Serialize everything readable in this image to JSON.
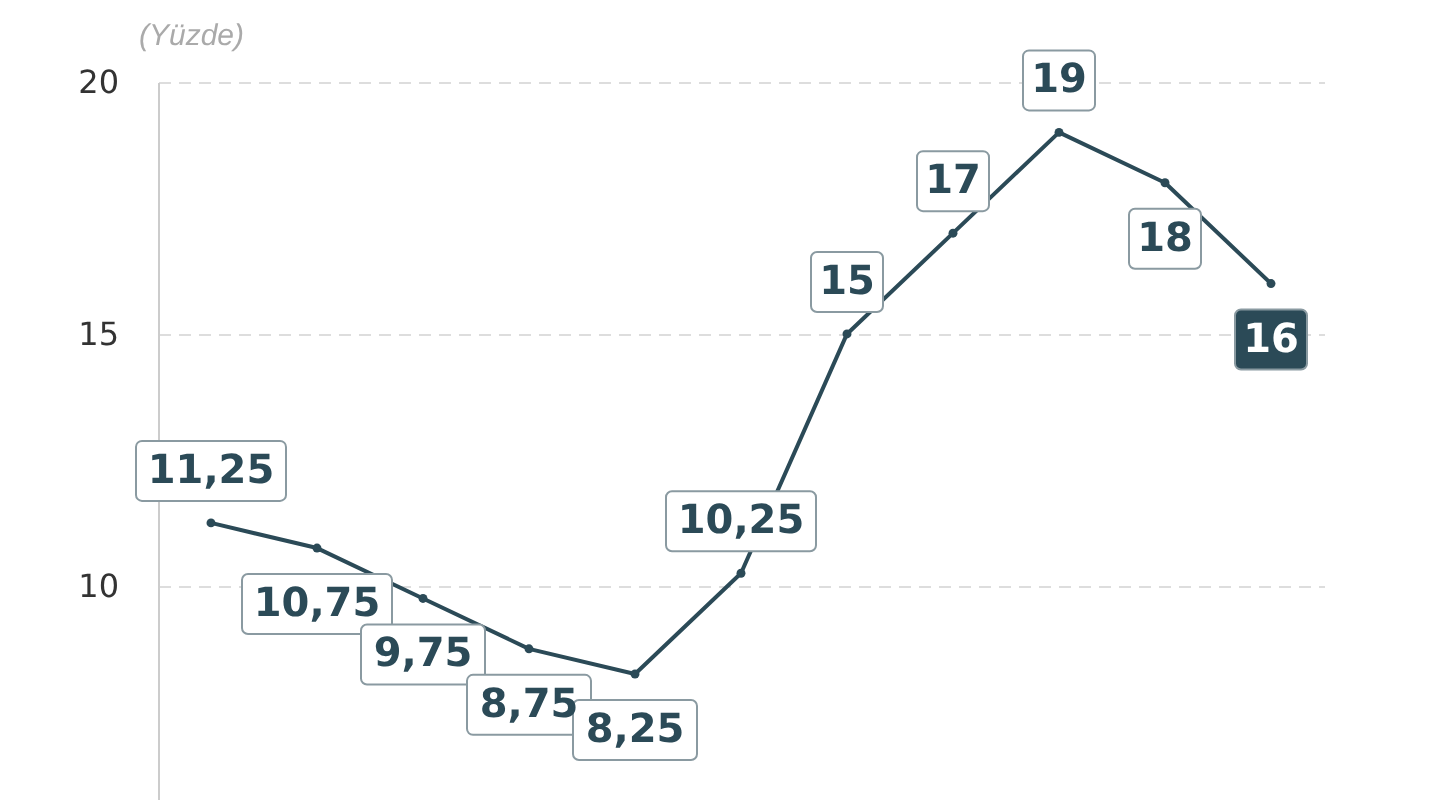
{
  "chart_data": {
    "type": "line",
    "ylabel": "(Yüzde)",
    "categories": [
      null,
      null,
      null,
      null,
      null,
      null,
      null,
      null,
      null,
      null,
      null
    ],
    "series": [
      {
        "color": "#2b4a57",
        "values": [
          11.25,
          10.75,
          9.75,
          8.75,
          8.25,
          10.25,
          15,
          17,
          19,
          18,
          16
        ],
        "value_labels": [
          "11,25",
          "10,75",
          "9,75",
          "8,75",
          "8,25",
          "10,25",
          "15",
          "17",
          "19",
          "18",
          "16"
        ]
      }
    ],
    "ylim": [
      5.75,
      20
    ],
    "yticks": [
      10,
      15,
      20
    ],
    "grid": "y",
    "marker": "circle",
    "line_style": "solid",
    "legend": false,
    "tick_labels": "y"
  }
}
